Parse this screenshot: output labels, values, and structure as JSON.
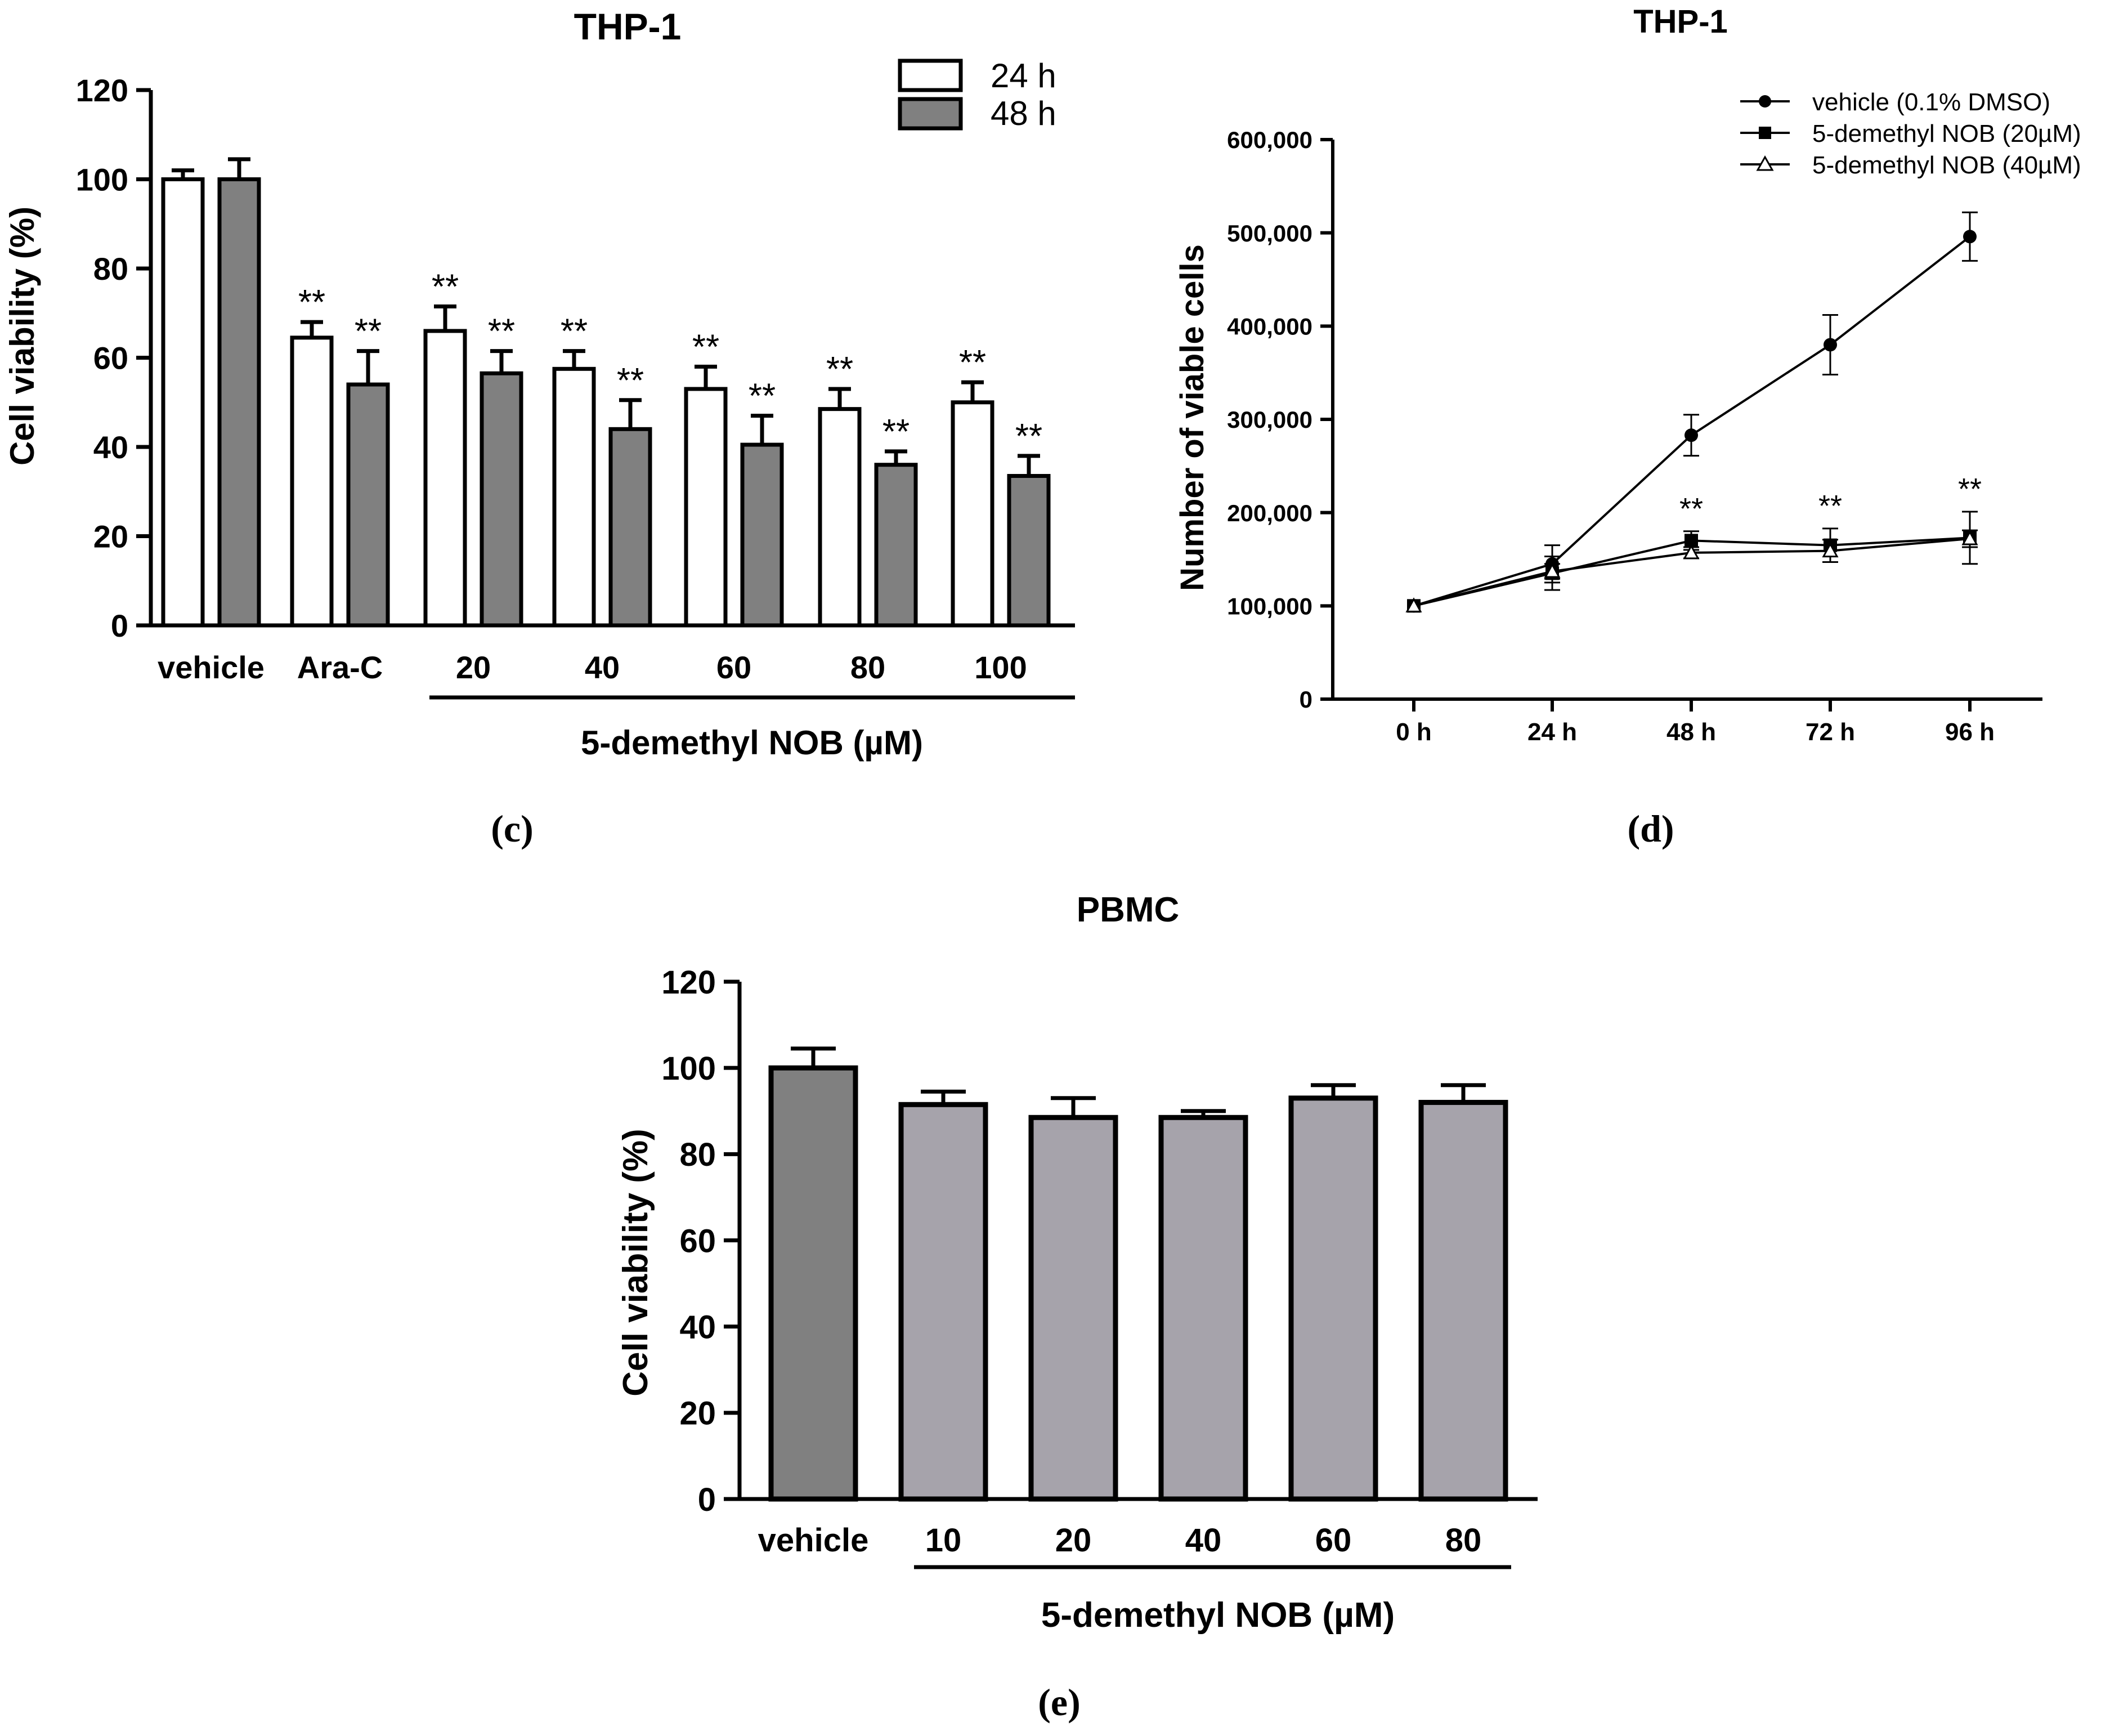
{
  "panels": {
    "c": {
      "label": "(c)"
    },
    "d": {
      "label": "(d)"
    },
    "e": {
      "label": "(e)"
    }
  },
  "colors": {
    "ink": "#000000",
    "bar_24h": "#ffffff",
    "bar_48h": "#808080",
    "bar_vehicle_e": "#808080",
    "bar_treated_e": "#a6a3ab"
  },
  "chart_data": [
    {
      "id": "c",
      "type": "bar",
      "title": "THP-1",
      "xlabel": "5-demethyl NOB (µM)",
      "ylabel": "Cell viability (%)",
      "ylim": [
        0,
        120
      ],
      "yticks": [
        "0",
        "20",
        "40",
        "60",
        "80",
        "100",
        "120"
      ],
      "categories": [
        "vehicle",
        "Ara-C",
        "20",
        "40",
        "60",
        "80",
        "100"
      ],
      "series": [
        {
          "name": "24 h",
          "values": [
            100,
            64.5,
            66,
            57.5,
            53,
            48.5,
            50
          ],
          "errors": [
            2,
            3.5,
            5.5,
            4,
            5,
            4.5,
            4.5
          ],
          "annotations": [
            "",
            "**",
            "**",
            "**",
            "**",
            "**",
            "**"
          ]
        },
        {
          "name": "48 h",
          "values": [
            100,
            54,
            56.5,
            44,
            40.5,
            36,
            33.5
          ],
          "errors": [
            4.5,
            7.5,
            5,
            6.5,
            6.5,
            3,
            4.5
          ],
          "annotations": [
            "",
            "**",
            "**",
            "**",
            "**",
            "**",
            "**"
          ]
        }
      ],
      "legend": [
        "24 h",
        "48 h"
      ],
      "legend_position": "top-right"
    },
    {
      "id": "d",
      "type": "line",
      "title": "THP-1",
      "xlabel": "",
      "ylabel": "Number of viable cells",
      "ylim": [
        0,
        600000
      ],
      "yticks": [
        "0",
        "100,000",
        "200,000",
        "300,000",
        "400,000",
        "500,000",
        "600,000"
      ],
      "categories": [
        "0 h",
        "24 h",
        "48 h",
        "72 h",
        "96 h"
      ],
      "series": [
        {
          "name": "vehicle (0.1% DMSO)",
          "marker": "circle",
          "values": [
            100000,
            145000,
            283000,
            380000,
            496000
          ],
          "errors": [
            0,
            20000,
            22000,
            32000,
            26000
          ]
        },
        {
          "name": "5-demethyl NOB (20µM)",
          "marker": "square",
          "values": [
            100000,
            135000,
            170000,
            165000,
            173000
          ],
          "errors": [
            0,
            18000,
            10000,
            18000,
            28000
          ]
        },
        {
          "name": "5-demethyl NOB (40µM)",
          "marker": "triangle",
          "values": [
            100000,
            137000,
            157000,
            159000,
            172000
          ],
          "errors": [
            0,
            8000,
            6000,
            12000,
            9000
          ]
        }
      ],
      "annotations": [
        "",
        "",
        "**",
        "**",
        "**"
      ],
      "legend": [
        "vehicle (0.1% DMSO)",
        "5-demethyl NOB (20µM)",
        "5-demethyl NOB (40µM)"
      ],
      "legend_position": "top-right"
    },
    {
      "id": "e",
      "type": "bar",
      "title": "PBMC",
      "xlabel": "5-demethyl NOB (µM)",
      "ylabel": "Cell viability (%)",
      "ylim": [
        0,
        120
      ],
      "yticks": [
        "0",
        "20",
        "40",
        "60",
        "80",
        "100",
        "120"
      ],
      "categories": [
        "vehicle",
        "10",
        "20",
        "40",
        "60",
        "80"
      ],
      "values": [
        100,
        91.5,
        88.5,
        88.5,
        93,
        92
      ],
      "errors": [
        4.5,
        3,
        4.5,
        1.5,
        3,
        4
      ]
    }
  ]
}
